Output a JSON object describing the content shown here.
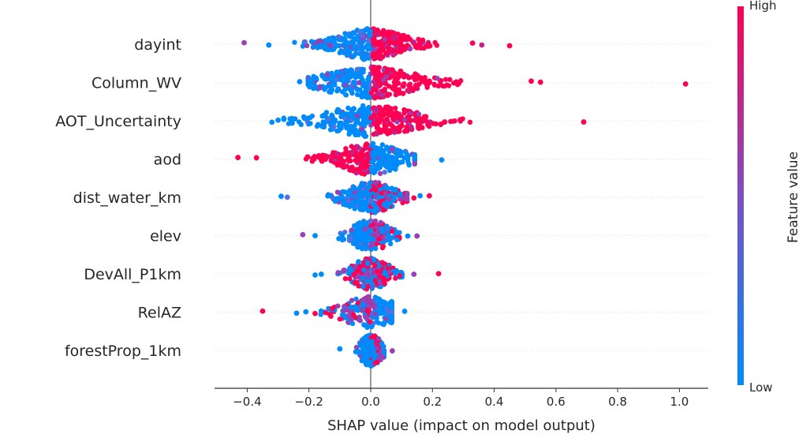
{
  "chart_data": {
    "type": "scatter",
    "subtype": "shap-beeswarm",
    "xlabel": "SHAP value (impact on model output)",
    "xlim": [
      -0.5,
      1.08
    ],
    "xticks": [
      -0.4,
      -0.2,
      0.0,
      0.2,
      0.4,
      0.6,
      0.8,
      1.0
    ],
    "xtick_labels": [
      "−0.4",
      "−0.2",
      "0.0",
      "0.2",
      "0.4",
      "0.6",
      "0.8",
      "1.0"
    ],
    "zero_line": true,
    "colorbar": {
      "title": "Feature value",
      "high_label": "High",
      "low_label": "Low",
      "high_color": "#ff0052",
      "low_color": "#008bfb"
    },
    "features": [
      {
        "name": "dayint",
        "min": -0.41,
        "max": 0.45,
        "neg_color": "low",
        "pos_color": "high",
        "outliers": [
          -0.41,
          -0.33,
          0.33,
          0.36,
          0.45
        ]
      },
      {
        "name": "Column_WV",
        "min": -0.23,
        "max": 1.02,
        "neg_color": "low",
        "pos_color": "high",
        "outliers": [
          -0.23,
          -0.2,
          0.52,
          0.55,
          1.02
        ]
      },
      {
        "name": "AOT_Uncertainty",
        "min": -0.32,
        "max": 0.69,
        "neg_color": "low",
        "pos_color": "high",
        "outliers": [
          -0.32,
          -0.3,
          0.24,
          0.29,
          0.69
        ]
      },
      {
        "name": "aod",
        "min": -0.43,
        "max": 0.23,
        "neg_color": "high",
        "pos_color": "low",
        "outliers": [
          -0.43,
          -0.37,
          0.12,
          0.23
        ]
      },
      {
        "name": "dist_water_km",
        "min": -0.29,
        "max": 0.19,
        "neg_color": "low",
        "pos_color": "mixed",
        "outliers": [
          -0.29,
          -0.27,
          0.14,
          0.16,
          0.19
        ]
      },
      {
        "name": "elev",
        "min": -0.22,
        "max": 0.15,
        "neg_color": "low",
        "pos_color": "mixed",
        "outliers": [
          -0.22,
          -0.18,
          0.12,
          0.15
        ]
      },
      {
        "name": "DevAll_P1km",
        "min": -0.18,
        "max": 0.22,
        "neg_color": "mixed",
        "pos_color": "mixed",
        "outliers": [
          -0.18,
          -0.16,
          0.14,
          0.22
        ]
      },
      {
        "name": "RelAZ",
        "min": -0.35,
        "max": 0.11,
        "neg_color": "mixed",
        "pos_color": "low",
        "outliers": [
          -0.35,
          -0.24,
          -0.21,
          -0.18,
          0.11
        ]
      },
      {
        "name": "forestProp_1km",
        "min": -0.1,
        "max": 0.07,
        "neg_color": "low",
        "pos_color": "mixed",
        "outliers": [
          -0.1,
          0.07
        ]
      }
    ]
  }
}
